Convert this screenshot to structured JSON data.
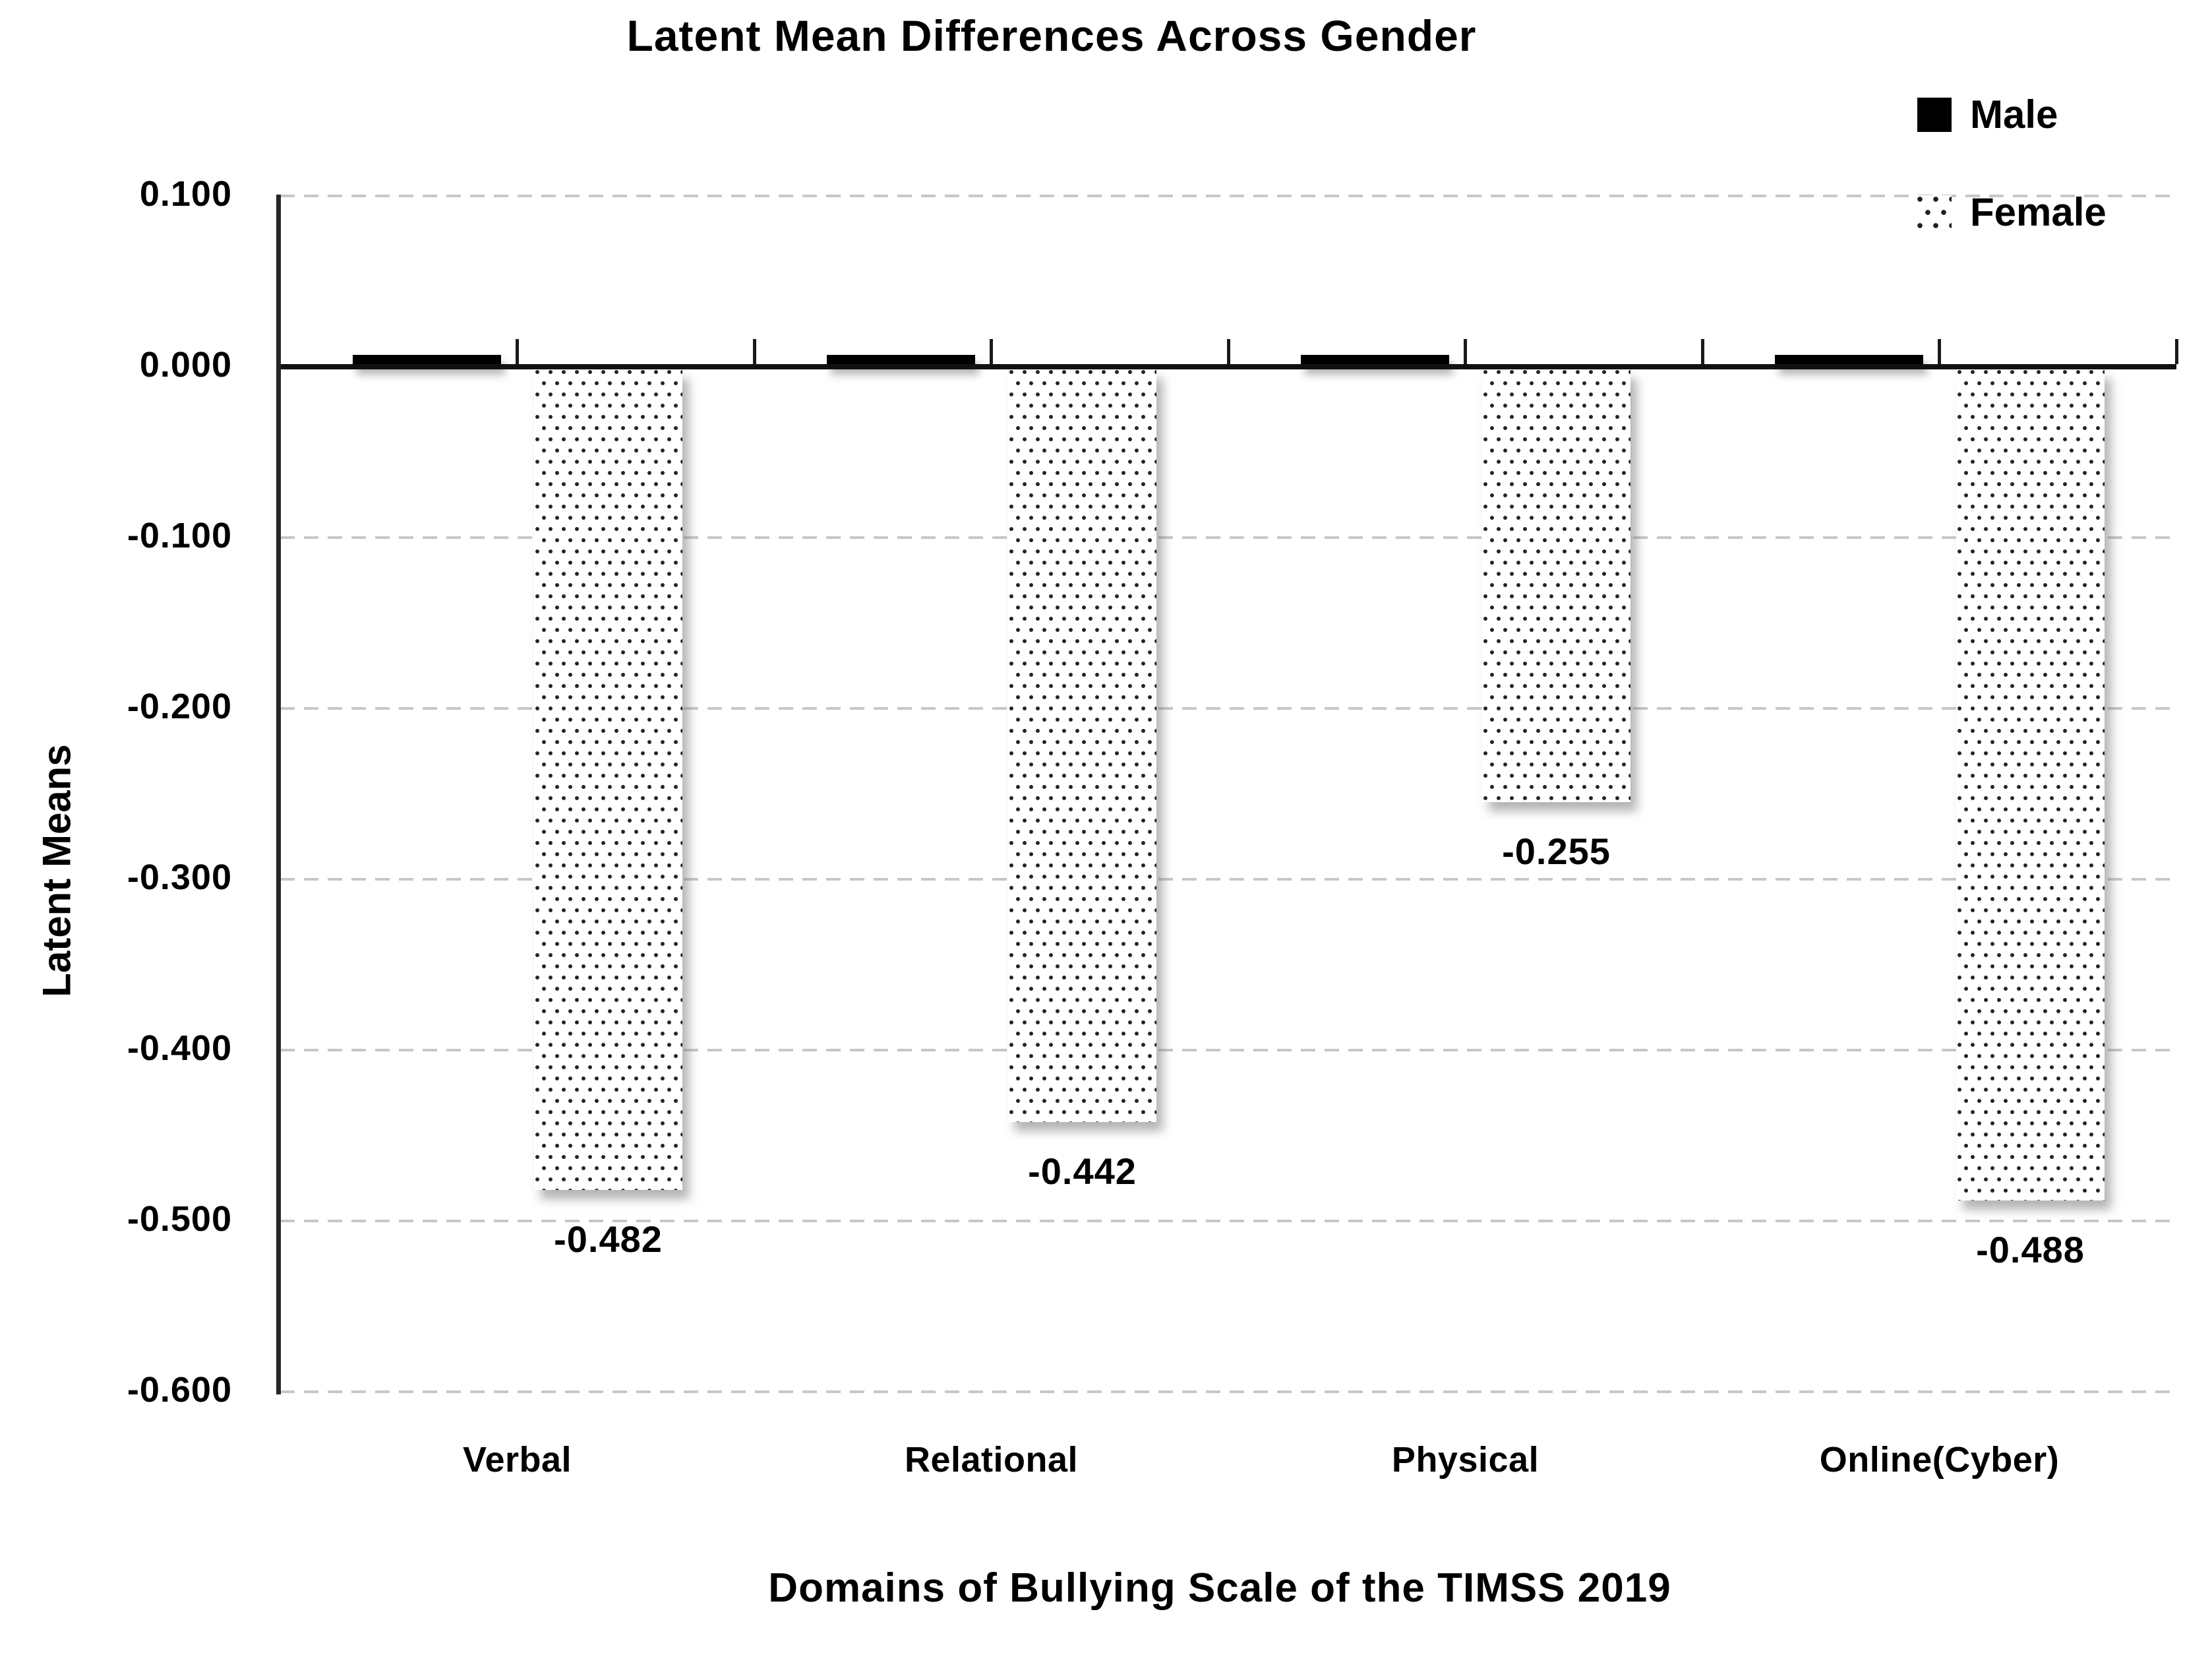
{
  "figure": {
    "title": "Latent Mean Differences Across Gender",
    "x_axis_title": "Domains of Bullying Scale of the TIMSS 2019",
    "y_axis_title": "Latent Means"
  },
  "legend": {
    "position": "top-right",
    "items": [
      {
        "label": "Male",
        "swatch": "solid-black-square"
      },
      {
        "label": "Female",
        "swatch": "dotted-pattern-square"
      }
    ]
  },
  "y_axis": {
    "tick_labels": [
      "0.100",
      "0.000",
      "-0.100",
      "-0.200",
      "-0.300",
      "-0.400",
      "-0.500",
      "-0.600"
    ]
  },
  "x_axis": {
    "categories": [
      "Verbal",
      "Relational",
      "Physical",
      "Online(Cyber)"
    ]
  },
  "chart_data": {
    "type": "bar",
    "title": "Latent Mean Differences Across Gender",
    "categories": [
      "Verbal",
      "Relational",
      "Physical",
      "Online(Cyber)"
    ],
    "series": [
      {
        "name": "Male",
        "fill": "solid-black",
        "values": [
          0.0,
          0.0,
          0.0,
          0.0
        ],
        "data_labels": [
          "",
          "",
          "",
          ""
        ]
      },
      {
        "name": "Female",
        "fill": "polka-dot",
        "values": [
          -0.482,
          -0.442,
          -0.255,
          -0.488
        ],
        "data_labels": [
          "-0.482",
          "-0.442",
          "-0.255",
          "-0.488"
        ]
      }
    ],
    "xlabel": "Domains of Bullying Scale of the TIMSS 2019",
    "ylabel": "Latent Means",
    "ylim": [
      -0.6,
      0.1
    ],
    "yticks": [
      0.1,
      0.0,
      -0.1,
      -0.2,
      -0.3,
      -0.4,
      -0.5,
      -0.6
    ],
    "ytick_step": 0.1,
    "grid": "horizontal-dashed",
    "legend_position": "top-right",
    "colors": {
      "male_bar": "#000000",
      "female_bar_dots": "#222222",
      "gridline": "#c7c7c7",
      "axis": "#1a1a1a",
      "text": "#000000",
      "background": "#ffffff"
    }
  }
}
